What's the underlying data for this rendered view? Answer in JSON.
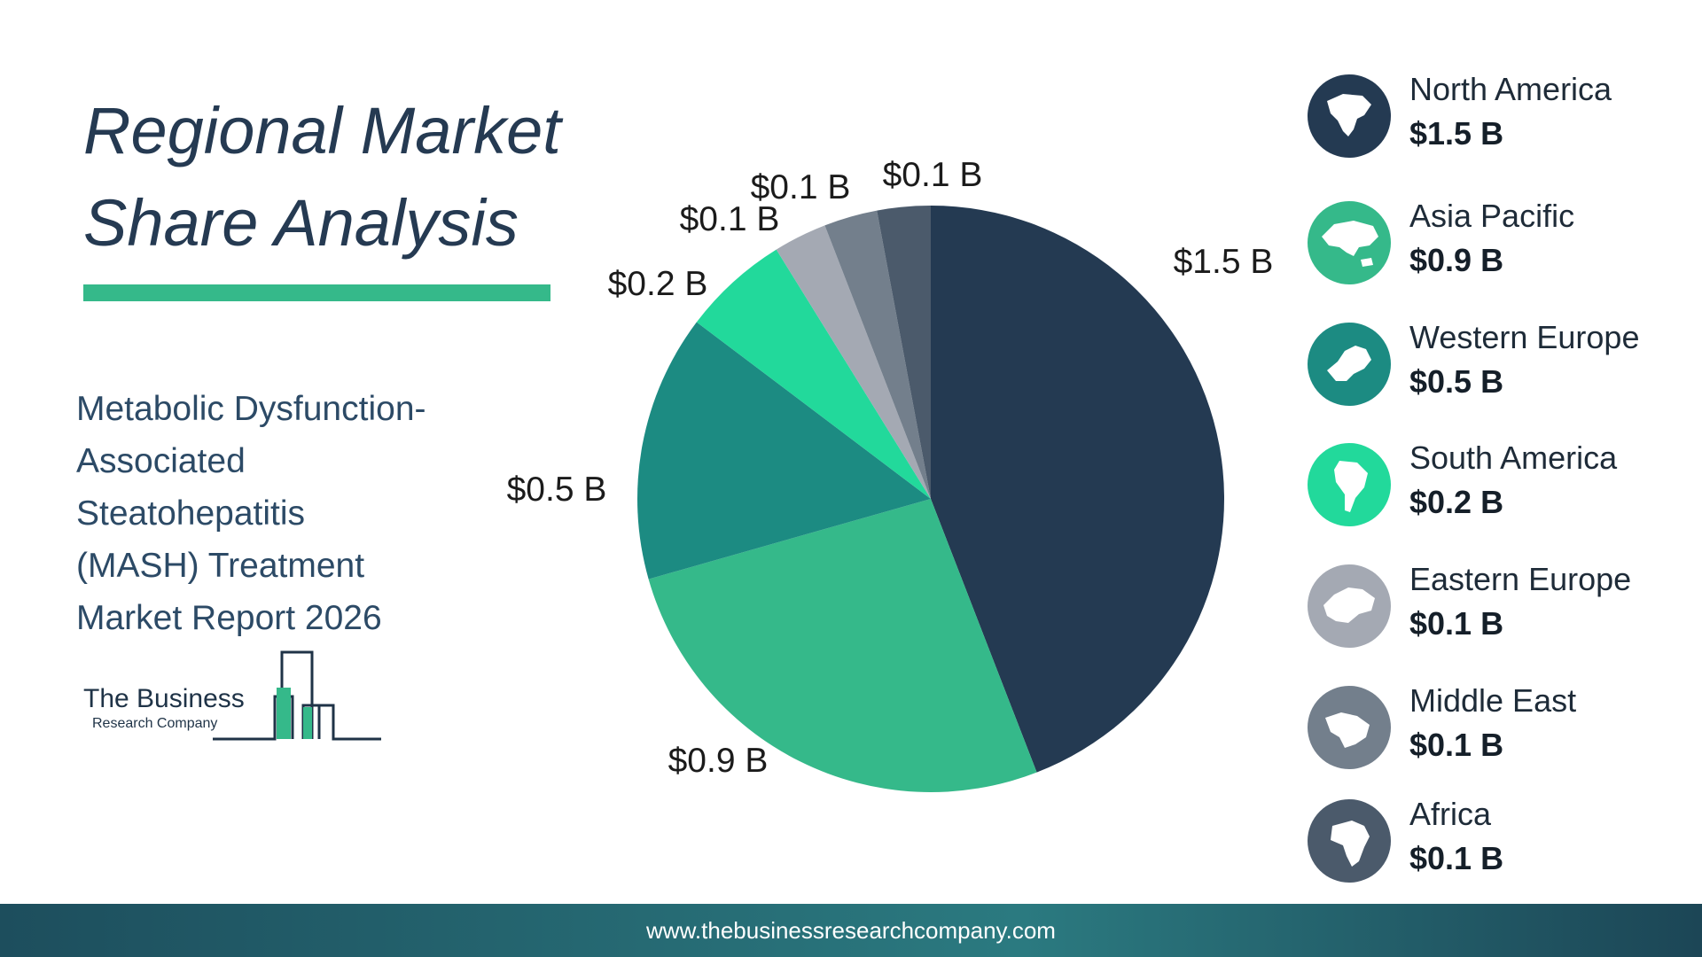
{
  "title": {
    "line1": "Regional Market",
    "line2": "Share Analysis"
  },
  "report": {
    "line1": "Metabolic Dysfunction-",
    "line2": "Associated",
    "line3": "Steatohepatitis",
    "line4": "(MASH) Treatment",
    "line5": "Market Report 2026"
  },
  "logo": {
    "name": "The Business",
    "sub": "Research Company"
  },
  "footer": {
    "url": "www.thebusinessresearchcompany.com"
  },
  "colors": {
    "title_underline": "#35b98a",
    "North America": "#243a52",
    "Asia Pacific": "#35b98a",
    "Western Europe": "#1c8b82",
    "South America": "#22d99b",
    "Eastern Europe": "#a4a9b3",
    "Middle East": "#737f8c",
    "Africa": "#4b5a6b"
  },
  "legend": [
    {
      "name": "North America",
      "value": "$1.5 B",
      "icon": "north-america-map-icon"
    },
    {
      "name": "Asia Pacific",
      "value": "$0.9 B",
      "icon": "asia-pacific-map-icon"
    },
    {
      "name": "Western Europe",
      "value": "$0.5 B",
      "icon": "western-europe-map-icon"
    },
    {
      "name": "South America",
      "value": "$0.2 B",
      "icon": "south-america-map-icon"
    },
    {
      "name": "Eastern Europe",
      "value": "$0.1 B",
      "icon": "eastern-europe-map-icon"
    },
    {
      "name": "Middle East",
      "value": "$0.1 B",
      "icon": "middle-east-map-icon"
    },
    {
      "name": "Africa",
      "value": "$0.1 B",
      "icon": "africa-map-icon"
    }
  ],
  "chart_data": {
    "type": "pie",
    "unit": "$ B",
    "categories": [
      "North America",
      "Asia Pacific",
      "Western Europe",
      "South America",
      "Eastern Europe",
      "Middle East",
      "Africa"
    ],
    "values": [
      1.5,
      0.9,
      0.5,
      0.2,
      0.1,
      0.1,
      0.1
    ],
    "labels": [
      "$1.5 B",
      "$0.9 B",
      "$0.5 B",
      "$0.2 B",
      "$0.1 B",
      "$0.1 B",
      "$0.1 B"
    ],
    "start_angle": "12 o'clock",
    "direction": "clockwise",
    "legend_position": "right"
  }
}
